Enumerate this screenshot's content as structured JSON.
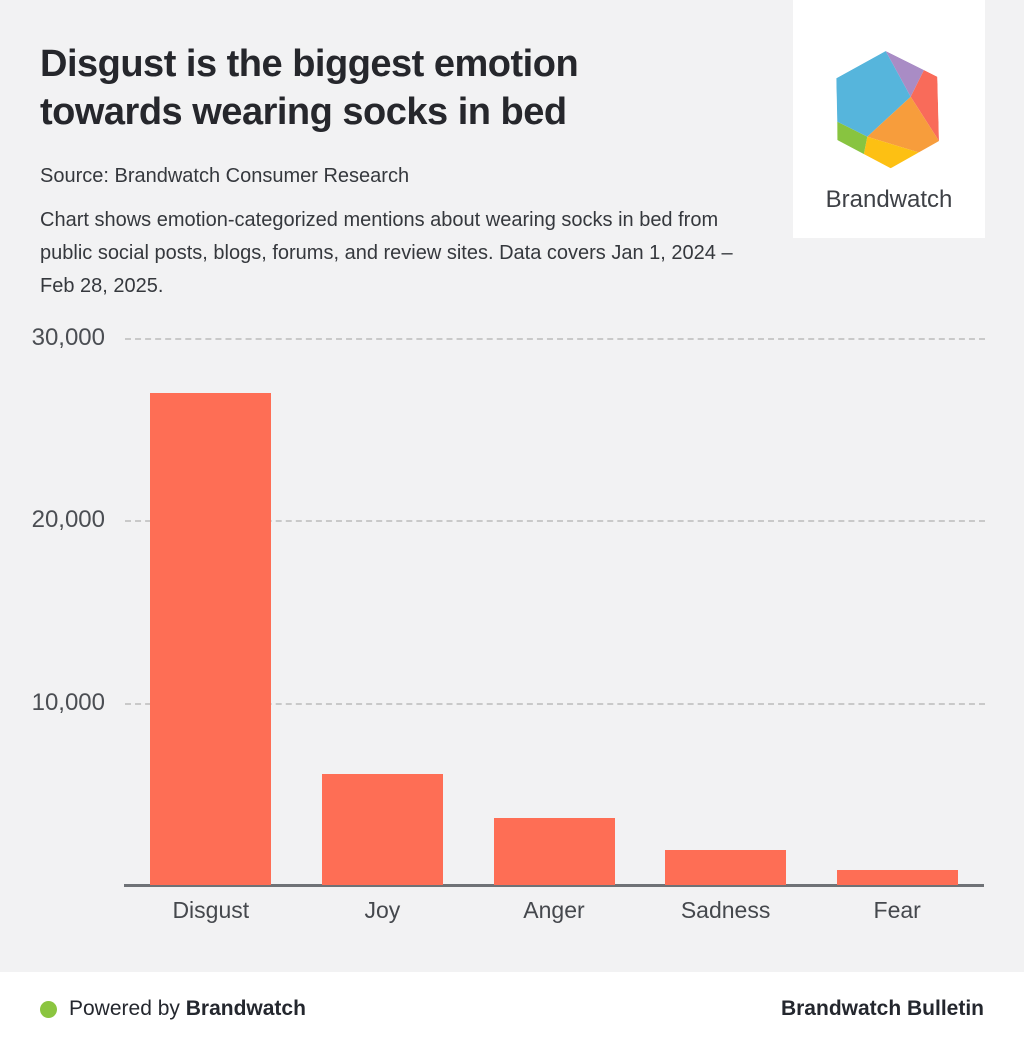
{
  "header": {
    "title": "Disgust is the biggest emotion towards wearing socks in bed",
    "source": "Source: Brandwatch Consumer Research",
    "description": "Chart shows emotion-categorized mentions about wearing socks in bed from public social posts, blogs, forums, and review sites. Data covers Jan 1, 2024 – Feb 28, 2025."
  },
  "logo_card": {
    "brand_name": "Brandwatch",
    "icon": "brandwatch-hexagon-logo",
    "hexagon_colors": {
      "blue": "#56b5dc",
      "purple": "#a98cc5",
      "red": "#f96b5a",
      "orange": "#f79d3c",
      "yellow": "#fdc013",
      "green": "#88c440"
    }
  },
  "chart_data": {
    "type": "bar",
    "categories": [
      "Disgust",
      "Joy",
      "Anger",
      "Sadness",
      "Fear"
    ],
    "values": [
      27000,
      6100,
      3700,
      1900,
      850
    ],
    "title": "Disgust is the biggest emotion towards wearing socks in bed",
    "xlabel": "",
    "ylabel": "",
    "ylim": [
      0,
      30000
    ],
    "yticks": [
      10000,
      20000,
      30000
    ],
    "ytick_labels": [
      "10,000",
      "20,000",
      "30,000"
    ],
    "grid": "horizontal-dashed",
    "legend": "none",
    "bar_color": "#fe6e55"
  },
  "footer": {
    "powered_by_prefix": "Powered by ",
    "powered_by_brand": "Brandwatch",
    "right_text": "Brandwatch Bulletin",
    "dot_color": "#8bc540"
  },
  "colors": {
    "background": "#f2f2f3",
    "card_bg": "#ffffff",
    "grid": "#c9c9c9",
    "axis": "#6f7276",
    "title_text": "#26272c",
    "body_text": "#35383d",
    "tick_text": "#4b4e53"
  }
}
